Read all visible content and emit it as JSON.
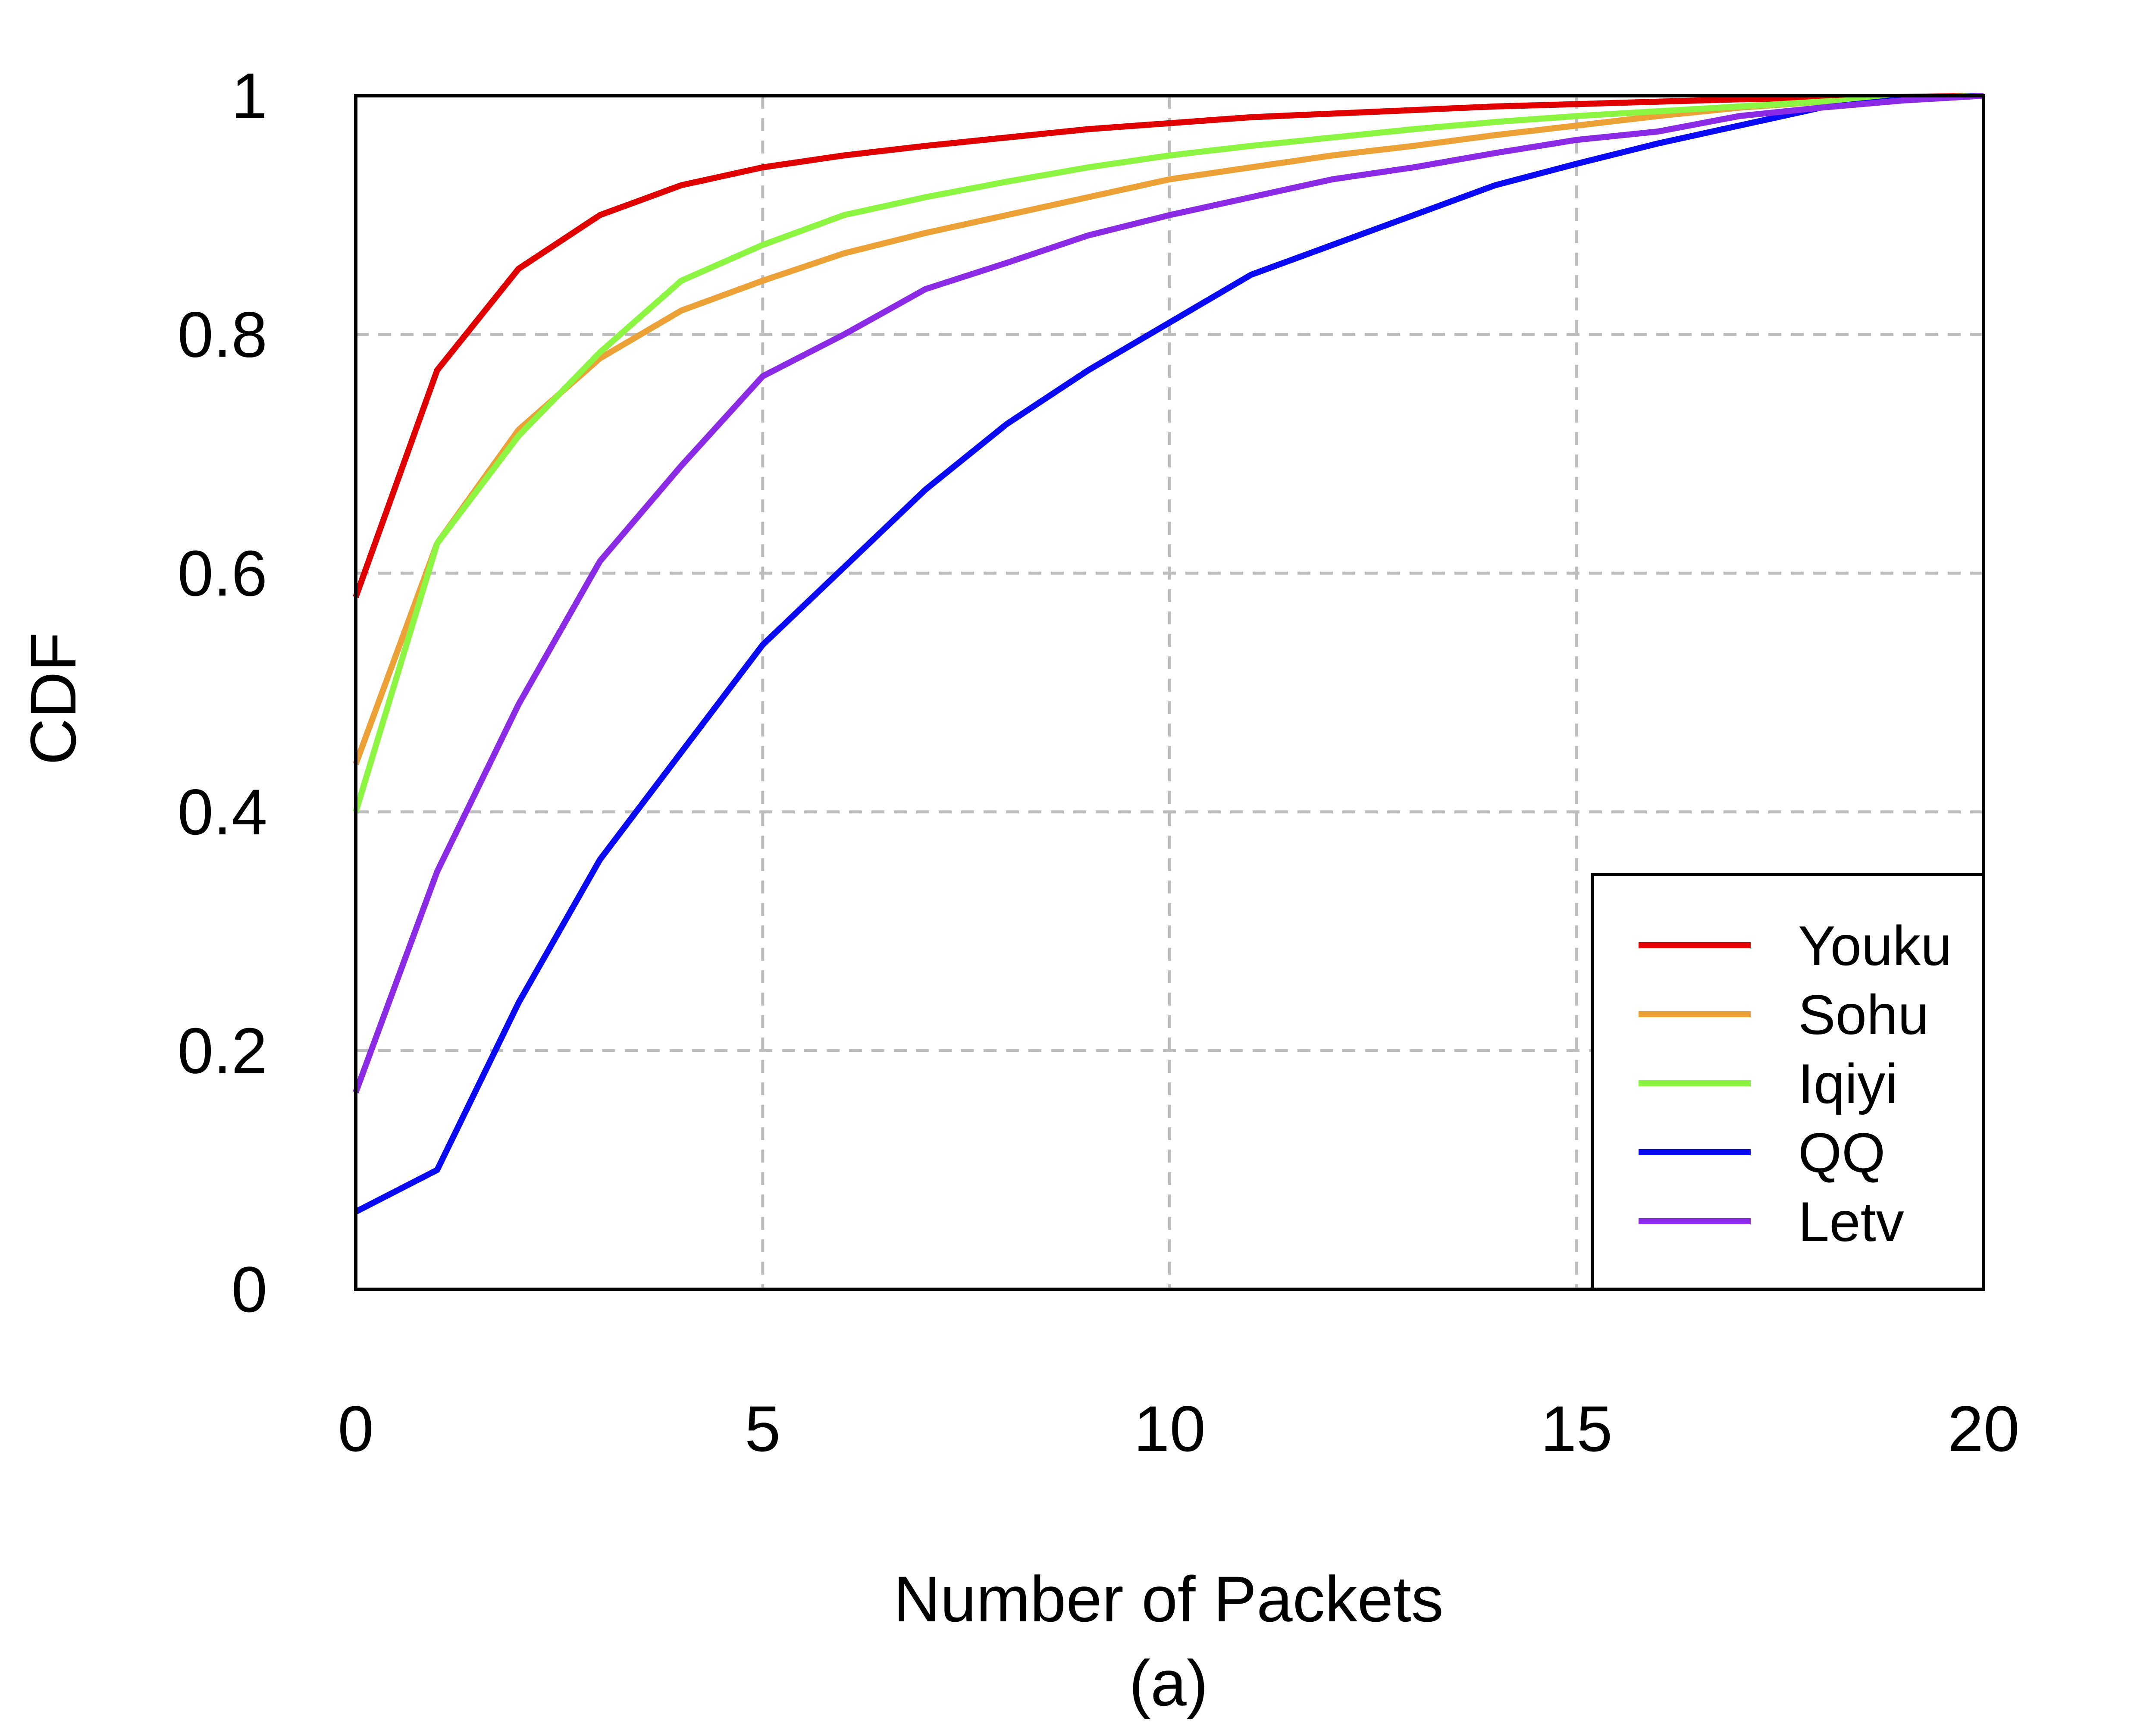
{
  "chart_data": {
    "type": "line",
    "title": "",
    "xlabel": "Number of Packets",
    "ylabel": "CDF",
    "caption": "(a)",
    "xlim": [
      0,
      20
    ],
    "ylim": [
      0,
      1
    ],
    "xticks": [
      0,
      5,
      10,
      15,
      20
    ],
    "xtick_labels": [
      "0",
      "5",
      "10",
      "15",
      "20"
    ],
    "yticks": [
      0,
      0.2,
      0.4,
      0.6,
      0.8,
      1
    ],
    "ytick_labels": [
      "0",
      "0.2",
      "0.4",
      "0.6",
      "0.8",
      "1"
    ],
    "grid": true,
    "legend_position": "bottom-right",
    "x": [
      0,
      1,
      2,
      3,
      4,
      5,
      6,
      7,
      8,
      9,
      10,
      11,
      12,
      13,
      14,
      15,
      16,
      17,
      18,
      19,
      20
    ],
    "series": [
      {
        "name": "Youku",
        "color": "#e00000",
        "values": [
          0.58,
          0.77,
          0.855,
          0.9,
          0.925,
          0.94,
          0.95,
          0.958,
          0.965,
          0.972,
          0.977,
          0.982,
          0.985,
          0.988,
          0.991,
          0.993,
          0.995,
          0.997,
          0.998,
          0.999,
          1.0
        ]
      },
      {
        "name": "Sohu",
        "color": "#eba135",
        "values": [
          0.44,
          0.625,
          0.72,
          0.78,
          0.82,
          0.845,
          0.868,
          0.885,
          0.9,
          0.915,
          0.93,
          0.94,
          0.95,
          0.958,
          0.967,
          0.975,
          0.983,
          0.99,
          0.995,
          0.998,
          1.0
        ]
      },
      {
        "name": "Iqiyi",
        "color": "#8cf542",
        "values": [
          0.4,
          0.625,
          0.715,
          0.785,
          0.845,
          0.875,
          0.9,
          0.915,
          0.928,
          0.94,
          0.95,
          0.958,
          0.965,
          0.972,
          0.978,
          0.983,
          0.987,
          0.991,
          0.995,
          0.998,
          1.0
        ]
      },
      {
        "name": "QQ",
        "color": "#0a0af5",
        "values": [
          0.065,
          0.1,
          0.24,
          0.36,
          0.45,
          0.54,
          0.605,
          0.67,
          0.725,
          0.77,
          0.81,
          0.85,
          0.875,
          0.9,
          0.925,
          0.943,
          0.96,
          0.975,
          0.99,
          0.997,
          1.0
        ]
      },
      {
        "name": "Letv",
        "color": "#8c2be6",
        "values": [
          0.165,
          0.35,
          0.49,
          0.61,
          0.69,
          0.765,
          0.8,
          0.838,
          0.86,
          0.883,
          0.9,
          0.915,
          0.93,
          0.94,
          0.952,
          0.963,
          0.97,
          0.983,
          0.99,
          0.996,
          1.0
        ]
      }
    ]
  }
}
